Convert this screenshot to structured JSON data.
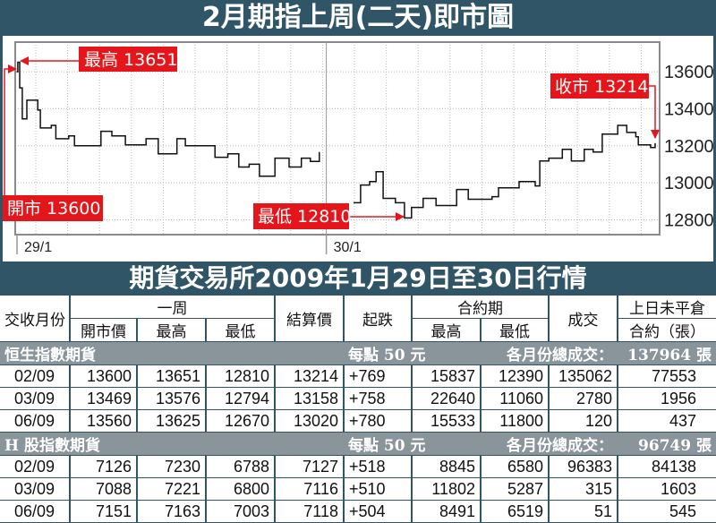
{
  "chart_title": "2月期指上周(二天)即市圖",
  "table_title": "期貨交易所2009年1月29日至30日行情",
  "colors": {
    "frame": "#2f5566",
    "annotation": "#e4161b",
    "section": "#8a949b"
  },
  "chart_data": {
    "type": "line",
    "title": "2月期指上周(二天)即市圖",
    "xlabel": "",
    "ylabel": "",
    "ylim": [
      12720,
      13760
    ],
    "yticks": [
      13600,
      13400,
      13200,
      13000,
      12800
    ],
    "xlim": [
      0,
      100
    ],
    "day_labels": [
      {
        "label": "29/1",
        "t": 0
      },
      {
        "label": "30/1",
        "t": 48
      }
    ],
    "grid": true,
    "series": [
      {
        "name": "29/1",
        "points": [
          [
            0.2,
            13600
          ],
          [
            0.4,
            13651
          ],
          [
            0.7,
            13513
          ],
          [
            1.1,
            13345
          ],
          [
            1.8,
            13446
          ],
          [
            3.5,
            13393
          ],
          [
            3.9,
            13296
          ],
          [
            5.6,
            13310
          ],
          [
            6.3,
            13238
          ],
          [
            8.3,
            13253
          ],
          [
            9.2,
            13200
          ],
          [
            13.3,
            13278
          ],
          [
            15,
            13253
          ],
          [
            17.1,
            13205
          ],
          [
            20.3,
            13238
          ],
          [
            22.2,
            13157
          ],
          [
            25.1,
            13238
          ],
          [
            26.4,
            13200
          ],
          [
            30,
            13200
          ],
          [
            31,
            13138
          ],
          [
            33,
            13157
          ],
          [
            34.7,
            13085
          ],
          [
            36.3,
            13100
          ],
          [
            37.9,
            13036
          ],
          [
            40.3,
            13133
          ],
          [
            42.5,
            13085
          ],
          [
            44.4,
            13133
          ],
          [
            45.8,
            13115
          ],
          [
            47.2,
            13166
          ]
        ]
      },
      {
        "name": "30/1",
        "points": [
          [
            52.5,
            12892
          ],
          [
            53.6,
            12988
          ],
          [
            55,
            13007
          ],
          [
            56,
            13060
          ],
          [
            57.1,
            12916
          ],
          [
            59,
            12892
          ],
          [
            60.4,
            12810
          ],
          [
            61.5,
            12867
          ],
          [
            63.3,
            12916
          ],
          [
            65.3,
            12877
          ],
          [
            68.5,
            12964
          ],
          [
            70.3,
            12911
          ],
          [
            74,
            12925
          ],
          [
            75,
            12973
          ],
          [
            78.2,
            13007
          ],
          [
            80,
            13007
          ],
          [
            80.7,
            12983
          ],
          [
            81.4,
            13118
          ],
          [
            82.8,
            13133
          ],
          [
            84.9,
            13181
          ],
          [
            86.3,
            13118
          ],
          [
            88.3,
            13181
          ],
          [
            89.7,
            13166
          ],
          [
            91.1,
            13263
          ],
          [
            93.5,
            13310
          ],
          [
            94.9,
            13272
          ],
          [
            96.3,
            13248
          ],
          [
            96.7,
            13205
          ],
          [
            98.6,
            13190
          ],
          [
            99.3,
            13214
          ]
        ]
      }
    ],
    "annotations": {
      "high": "最高 13651",
      "open": "開市 13600",
      "low": "最低 12810",
      "close": "收市 13214"
    }
  },
  "table": {
    "header_row1": {
      "month": "交收月份",
      "week": "一周",
      "settle": "結算價",
      "change": "起跌",
      "contract": "合約期",
      "volume": "成交",
      "oi": "上日未平倉"
    },
    "header_row2": {
      "open": "開市價",
      "high": "最高",
      "low": "最低",
      "c_high": "最高",
      "c_low": "最低",
      "oi2": "合約（張）"
    },
    "sections": [
      {
        "name": "恒生指數期貨",
        "per_point": "每點 50 元",
        "total_label": "各月份總成交：",
        "total": "137964 張",
        "rows": [
          [
            "02/09",
            "13600",
            "13651",
            "12810",
            "13214",
            "+769",
            "15837",
            "12390",
            "135062",
            "77553"
          ],
          [
            "03/09",
            "13469",
            "13576",
            "12794",
            "13158",
            "+758",
            "22640",
            "11060",
            "2780",
            "1956"
          ],
          [
            "06/09",
            "13560",
            "13625",
            "12670",
            "13020",
            "+780",
            "15533",
            "11800",
            "120",
            "437"
          ]
        ]
      },
      {
        "name": "H 股指數期貨",
        "per_point": "每點 50 元",
        "total_label": "各月份總成交：",
        "total": "96749 張",
        "rows": [
          [
            "02/09",
            "7126",
            "7230",
            "6788",
            "7127",
            "+518",
            "8845",
            "6580",
            "96383",
            "84138"
          ],
          [
            "03/09",
            "7088",
            "7221",
            "6800",
            "7116",
            "+510",
            "11802",
            "5287",
            "315",
            "1603"
          ],
          [
            "06/09",
            "7151",
            "7163",
            "7003",
            "7118",
            "+504",
            "8491",
            "6519",
            "51",
            "545"
          ]
        ]
      }
    ]
  }
}
